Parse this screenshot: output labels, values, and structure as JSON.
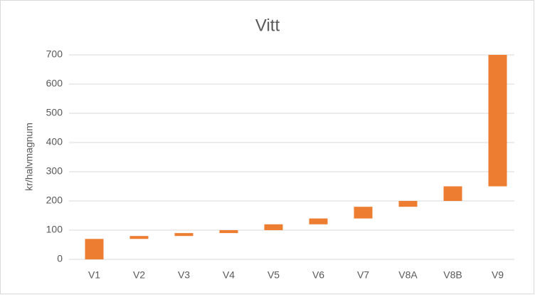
{
  "chart_data": {
    "type": "floating-bar",
    "title": "Vitt",
    "y_label": "kr/halvmagnum",
    "categories": [
      "V1",
      "V2",
      "V3",
      "V4",
      "V5",
      "V6",
      "V7",
      "V8A",
      "V8B",
      "V9"
    ],
    "low": [
      0,
      70,
      80,
      90,
      100,
      120,
      140,
      180,
      200,
      250
    ],
    "high": [
      70,
      80,
      90,
      100,
      120,
      140,
      180,
      200,
      250,
      700
    ],
    "color": "#ed7d31",
    "ylim": [
      0,
      700
    ],
    "yticks": [
      0,
      100,
      200,
      300,
      400,
      500,
      600,
      700
    ],
    "grid": true
  }
}
